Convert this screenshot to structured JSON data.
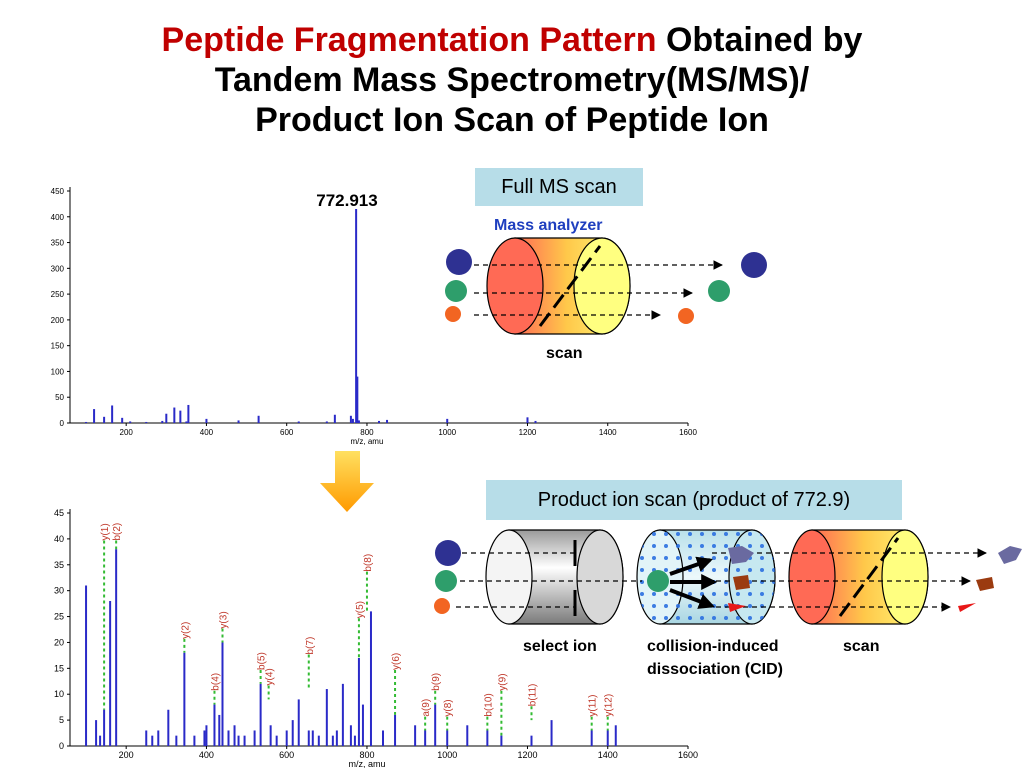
{
  "title": {
    "red_part": "Peptide Fragmentation Pattern",
    "black_part_1": "Obtained by",
    "line2": "Tandem Mass Spectrometry(MS/MS)/",
    "line3": "Product Ion Scan of Peptide Ion"
  },
  "full_ms": {
    "box_label": "Full MS scan",
    "analyzer_label": "Mass analyzer",
    "scan_label": "scan"
  },
  "product_scan": {
    "box_label": "Product ion scan (product of 772.9)",
    "select_label": "select ion",
    "cid_label_1": "collision-induced",
    "cid_label_2": "dissociation (CID)",
    "scan_label": "scan"
  },
  "colors": {
    "title_red": "#c00000",
    "bar_blue": "#2a2ac8",
    "label_red": "#c0392b",
    "guide_green": "#33bb33",
    "box_fill": "#b7dde8",
    "ion_navy": "#2e3192",
    "ion_green": "#2e9e6b",
    "ion_orange": "#f26522",
    "arrow_gold": "#ffc000"
  },
  "chart_data": [
    {
      "type": "bar",
      "peak_label": "772.913",
      "xlabel": "m/z, amu",
      "xlim": [
        60,
        1600
      ],
      "ylim": [
        0,
        450
      ],
      "xticks": [
        "200",
        "400",
        "600",
        "800",
        "1000",
        "1200",
        "1400",
        "1600"
      ],
      "xtick_values": [
        200,
        400,
        600,
        800,
        1000,
        1200,
        1400,
        1600
      ],
      "yticks": [
        "0",
        "50",
        "100",
        "150",
        "200",
        "250",
        "300",
        "350",
        "400",
        "450"
      ],
      "ytick_values": [
        0,
        50,
        100,
        150,
        200,
        250,
        300,
        350,
        400,
        450
      ],
      "x": [
        100,
        120,
        145,
        165,
        190,
        210,
        250,
        290,
        300,
        320,
        335,
        350,
        355,
        400,
        480,
        530,
        630,
        700,
        720,
        760,
        765,
        773,
        776,
        780,
        830,
        850,
        1000,
        1200,
        1220
      ],
      "values": [
        2,
        27,
        12,
        34,
        10,
        3,
        2,
        4,
        18,
        30,
        24,
        3,
        35,
        8,
        5,
        14,
        3,
        3,
        16,
        14,
        8,
        415,
        90,
        5,
        4,
        6,
        8,
        11,
        4
      ]
    },
    {
      "type": "bar",
      "xlabel": "m/z, amu",
      "xlim": [
        60,
        1600
      ],
      "ylim": [
        0,
        45
      ],
      "xticks": [
        "200",
        "400",
        "600",
        "800",
        "1000",
        "1200",
        "1400",
        "1600"
      ],
      "xtick_values": [
        200,
        400,
        600,
        800,
        1000,
        1200,
        1400,
        1600
      ],
      "yticks": [
        "0",
        "5",
        "10",
        "15",
        "20",
        "25",
        "30",
        "35",
        "40",
        "45"
      ],
      "ytick_values": [
        0,
        5,
        10,
        15,
        20,
        25,
        30,
        35,
        40,
        45
      ],
      "x": [
        100,
        125,
        135,
        145,
        160,
        175,
        250,
        265,
        280,
        305,
        325,
        345,
        370,
        395,
        400,
        420,
        432,
        440,
        455,
        470,
        480,
        495,
        520,
        535,
        560,
        575,
        600,
        615,
        630,
        655,
        665,
        680,
        700,
        715,
        725,
        740,
        760,
        770,
        780,
        790,
        810,
        840,
        870,
        920,
        945,
        970,
        1000,
        1050,
        1100,
        1135,
        1210,
        1260,
        1360,
        1400,
        1420
      ],
      "values": [
        31,
        5,
        2,
        7,
        28,
        38,
        3,
        2,
        3,
        7,
        2,
        18,
        2,
        3,
        4,
        8,
        6,
        20,
        3,
        4,
        2,
        2,
        3,
        12,
        4,
        2,
        3,
        5,
        9,
        3,
        3,
        2,
        11,
        2,
        3,
        12,
        4,
        2,
        17,
        8,
        26,
        3,
        6,
        4,
        3,
        8,
        3,
        4,
        3,
        2,
        2,
        5,
        3,
        3,
        4
      ],
      "labels": [
        {
          "text": "y(1)",
          "x": 145,
          "y": 7,
          "top": 42
        },
        {
          "text": "b(2)",
          "x": 175,
          "y": 38,
          "top": 42
        },
        {
          "text": "y(2)",
          "x": 345,
          "y": 18,
          "top": 23
        },
        {
          "text": "b(4)",
          "x": 420,
          "y": 8,
          "top": 13
        },
        {
          "text": "y(3)",
          "x": 440,
          "y": 20,
          "top": 25
        },
        {
          "text": "b(5)",
          "x": 535,
          "y": 12,
          "top": 17
        },
        {
          "text": "y(4)",
          "x": 555,
          "y": 9,
          "top": 14
        },
        {
          "text": "b(7)",
          "x": 655,
          "y": 11,
          "top": 20
        },
        {
          "text": "y(5)",
          "x": 780,
          "y": 17,
          "top": 27
        },
        {
          "text": "b(8)",
          "x": 800,
          "y": 26,
          "top": 36
        },
        {
          "text": "y(6)",
          "x": 870,
          "y": 6,
          "top": 17
        },
        {
          "text": "a(9)",
          "x": 945,
          "y": 3,
          "top": 8
        },
        {
          "text": "b(9)",
          "x": 970,
          "y": 8,
          "top": 13
        },
        {
          "text": "y(8)",
          "x": 1000,
          "y": 3,
          "top": 8
        },
        {
          "text": "b(10)",
          "x": 1100,
          "y": 3,
          "top": 8
        },
        {
          "text": "y(9)",
          "x": 1135,
          "y": 2,
          "top": 13
        },
        {
          "text": "b(11)",
          "x": 1210,
          "y": 5,
          "top": 10
        },
        {
          "text": "y(11)",
          "x": 1360,
          "y": 3,
          "top": 8
        },
        {
          "text": "y(12)",
          "x": 1400,
          "y": 3,
          "top": 8
        }
      ]
    }
  ]
}
